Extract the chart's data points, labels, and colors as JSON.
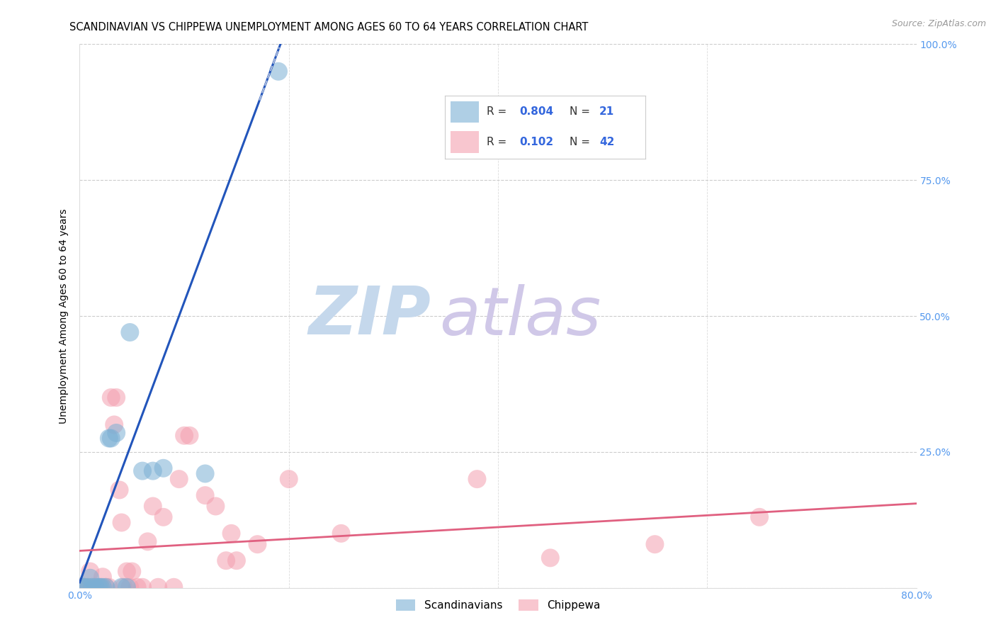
{
  "title": "SCANDINAVIAN VS CHIPPEWA UNEMPLOYMENT AMONG AGES 60 TO 64 YEARS CORRELATION CHART",
  "source": "Source: ZipAtlas.com",
  "ylabel": "Unemployment Among Ages 60 to 64 years",
  "xlim": [
    0.0,
    0.8
  ],
  "ylim": [
    0.0,
    1.0
  ],
  "x_ticks": [
    0.0,
    0.2,
    0.4,
    0.6,
    0.8
  ],
  "y_ticks": [
    0.0,
    0.25,
    0.5,
    0.75,
    1.0
  ],
  "x_tick_labels": [
    "0.0%",
    "",
    "",
    "",
    "80.0%"
  ],
  "y_tick_labels_right": [
    "",
    "25.0%",
    "50.0%",
    "75.0%",
    "100.0%"
  ],
  "scandinavian_color": "#7BAFD4",
  "chippewa_color": "#F4A0B0",
  "blue_line_color": "#2255BB",
  "pink_line_color": "#E06080",
  "dashed_line_color": "#AABBDD",
  "background_color": "#FFFFFF",
  "grid_color": "#CCCCCC",
  "tick_color": "#5599EE",
  "legend_R_color": "#3366DD",
  "R_scand": "0.804",
  "N_scand": "21",
  "R_chipp": "0.102",
  "N_chipp": "42",
  "scandinavian_points": [
    [
      0.002,
      0.002
    ],
    [
      0.005,
      0.001
    ],
    [
      0.008,
      0.001
    ],
    [
      0.01,
      0.018
    ],
    [
      0.012,
      0.001
    ],
    [
      0.015,
      0.001
    ],
    [
      0.018,
      0.001
    ],
    [
      0.02,
      0.001
    ],
    [
      0.022,
      0.001
    ],
    [
      0.025,
      0.001
    ],
    [
      0.028,
      0.275
    ],
    [
      0.03,
      0.275
    ],
    [
      0.035,
      0.285
    ],
    [
      0.04,
      0.001
    ],
    [
      0.045,
      0.001
    ],
    [
      0.048,
      0.47
    ],
    [
      0.06,
      0.215
    ],
    [
      0.07,
      0.215
    ],
    [
      0.08,
      0.22
    ],
    [
      0.12,
      0.21
    ],
    [
      0.19,
      0.95
    ]
  ],
  "chippewa_points": [
    [
      0.002,
      0.001
    ],
    [
      0.005,
      0.001
    ],
    [
      0.008,
      0.001
    ],
    [
      0.01,
      0.03
    ],
    [
      0.012,
      0.001
    ],
    [
      0.015,
      0.001
    ],
    [
      0.018,
      0.001
    ],
    [
      0.02,
      0.001
    ],
    [
      0.022,
      0.02
    ],
    [
      0.025,
      0.001
    ],
    [
      0.028,
      0.001
    ],
    [
      0.03,
      0.35
    ],
    [
      0.033,
      0.3
    ],
    [
      0.035,
      0.35
    ],
    [
      0.038,
      0.18
    ],
    [
      0.04,
      0.12
    ],
    [
      0.042,
      0.001
    ],
    [
      0.045,
      0.03
    ],
    [
      0.048,
      0.001
    ],
    [
      0.05,
      0.03
    ],
    [
      0.055,
      0.001
    ],
    [
      0.06,
      0.001
    ],
    [
      0.065,
      0.085
    ],
    [
      0.07,
      0.15
    ],
    [
      0.075,
      0.001
    ],
    [
      0.08,
      0.13
    ],
    [
      0.09,
      0.001
    ],
    [
      0.095,
      0.2
    ],
    [
      0.1,
      0.28
    ],
    [
      0.105,
      0.28
    ],
    [
      0.12,
      0.17
    ],
    [
      0.13,
      0.15
    ],
    [
      0.14,
      0.05
    ],
    [
      0.145,
      0.1
    ],
    [
      0.15,
      0.05
    ],
    [
      0.17,
      0.08
    ],
    [
      0.2,
      0.2
    ],
    [
      0.25,
      0.1
    ],
    [
      0.38,
      0.2
    ],
    [
      0.45,
      0.055
    ],
    [
      0.55,
      0.08
    ],
    [
      0.65,
      0.13
    ]
  ],
  "title_fontsize": 10.5,
  "source_fontsize": 9,
  "label_fontsize": 10,
  "tick_fontsize": 10,
  "watermark_zip_color": "#C5D8EC",
  "watermark_atlas_color": "#D0C8E8",
  "watermark_fontsize": 68
}
